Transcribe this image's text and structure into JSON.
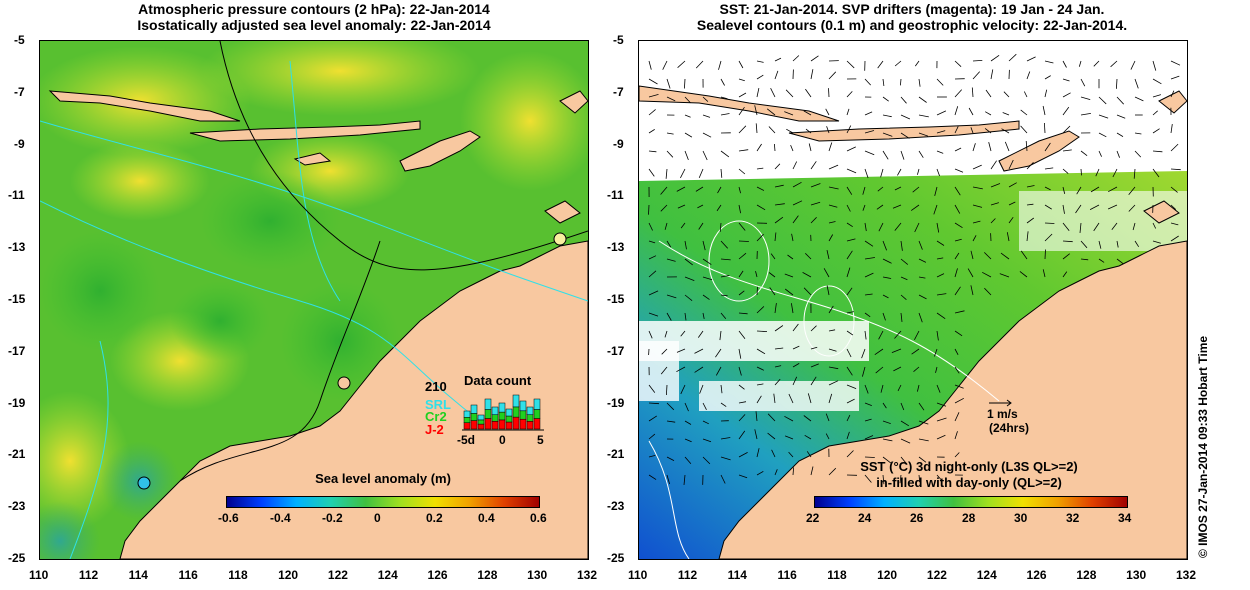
{
  "left_panel": {
    "title_line1": "Atmospheric pressure contours (2 hPa): 22-Jan-2014",
    "title_line2": "Isostatically adjusted sea level anomaly: 22-Jan-2014",
    "colorbar": {
      "title": "Sea level anomaly (m)",
      "min": -0.6,
      "max": 0.6,
      "ticks": [
        "-0.6",
        "-0.4",
        "-0.2",
        "0",
        "0.2",
        "0.4",
        "0.6"
      ]
    },
    "data_count": {
      "title": "Data count",
      "max_label": "210",
      "series": [
        {
          "name": "SRL",
          "color": "#30e0e8"
        },
        {
          "name": "Cr2",
          "color": "#20d020"
        },
        {
          "name": "J-2",
          "color": "#ff0000"
        }
      ],
      "x_ticks": [
        "-5d",
        "0",
        "5"
      ]
    }
  },
  "right_panel": {
    "title_line1": "SST: 21-Jan-2014. SVP drifters (magenta): 19 Jan - 24 Jan.",
    "title_line2": "Sealevel contours (0.1 m) and geostrophic velocity: 22-Jan-2014.",
    "velocity_scale": {
      "label": "1 m/s",
      "sublabel": "(24hrs)"
    },
    "colorbar": {
      "title_line1": "SST (°C)  3d night-only (L3S QL>=2)",
      "title_line2": "in-filled with day-only (QL>=2)",
      "min": 22,
      "max": 34,
      "ticks": [
        "22",
        "24",
        "26",
        "28",
        "30",
        "32",
        "34"
      ]
    }
  },
  "axes": {
    "x_ticks": [
      "110",
      "112",
      "114",
      "116",
      "118",
      "120",
      "122",
      "124",
      "126",
      "128",
      "130",
      "132"
    ],
    "y_ticks": [
      "-5",
      "-7",
      "-9",
      "-11",
      "-13",
      "-15",
      "-17",
      "-19",
      "-21",
      "-23",
      "-25"
    ],
    "lon_range": [
      110,
      132
    ],
    "lat_range": [
      -25,
      -5
    ]
  },
  "copyright": "© IMOS 27-Jan-2014 09:33 Hobart Time",
  "colors": {
    "land": "#f8c8a0",
    "sea_anomaly_base": "#60c830",
    "sst_base": "#40c040",
    "contour_cyan": "#30e0e8"
  }
}
